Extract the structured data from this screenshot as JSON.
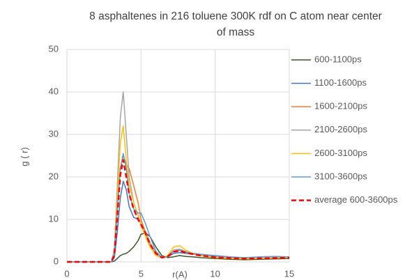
{
  "chart_data": {
    "type": "line",
    "title": "8 asphaltenes in 216 toluene 300K rdf on C atom near center of mass",
    "x_label": "r(A)",
    "y_label": "g ( r)",
    "x": [
      0,
      1,
      2,
      3,
      3.2,
      3.4,
      3.6,
      3.8,
      4,
      4.2,
      4.5,
      4.8,
      5,
      5.3,
      5.6,
      6,
      6.4,
      6.8,
      7.2,
      7.6,
      8,
      8.5,
      9,
      10,
      11,
      12,
      13,
      14,
      15
    ],
    "series": [
      {
        "name": "600-1100ps",
        "color": "#375623",
        "values": [
          0,
          0,
          0,
          0,
          0.2,
          0.8,
          1.5,
          1.8,
          2,
          2.5,
          3.5,
          5,
          6.5,
          6.8,
          6,
          3.5,
          1.5,
          1,
          1.2,
          1.5,
          1.3,
          1.2,
          1,
          0.8,
          0.6,
          0.5,
          0.6,
          0.7,
          0.8
        ]
      },
      {
        "name": "1100-1600ps",
        "color": "#4472c4",
        "values": [
          0,
          0,
          0,
          0,
          1,
          7,
          15,
          19,
          17,
          13,
          10.5,
          10,
          9,
          7,
          4.5,
          2,
          1,
          1.2,
          2,
          2.2,
          2,
          1.8,
          1.6,
          1.2,
          1,
          0.8,
          0.9,
          1,
          1
        ]
      },
      {
        "name": "1600-2100ps",
        "color": "#ed7d31",
        "values": [
          0,
          0,
          0,
          0,
          2,
          12,
          22,
          25,
          23,
          22,
          18,
          14,
          10,
          7,
          4.5,
          2,
          1,
          1.2,
          2.5,
          2.8,
          2.3,
          1.8,
          1.5,
          1,
          0.8,
          0.7,
          0.8,
          0.9,
          1
        ]
      },
      {
        "name": "2100-2600ps",
        "color": "#a5a5a5",
        "values": [
          0,
          0,
          0,
          0,
          3,
          18,
          34,
          40,
          30,
          20,
          14,
          11,
          9,
          6.5,
          4,
          2,
          1,
          1.3,
          2.8,
          3,
          2.5,
          2,
          1.8,
          1.3,
          1,
          0.8,
          0.9,
          1,
          1
        ]
      },
      {
        "name": "2600-3100ps",
        "color": "#ffc000",
        "values": [
          0,
          0,
          0,
          0,
          2.5,
          15,
          28,
          32,
          24,
          18,
          14,
          11,
          8.5,
          6,
          3.5,
          1.5,
          1,
          1.5,
          3.5,
          3.8,
          2.8,
          2,
          1.5,
          1,
          0.8,
          0.7,
          0.8,
          0.9,
          1
        ]
      },
      {
        "name": "3100-3600ps",
        "color": "#5b9bd5",
        "values": [
          0,
          0,
          0,
          0,
          2,
          12,
          22,
          25.5,
          22,
          16,
          12.5,
          11.5,
          11.5,
          9,
          6,
          2.5,
          1,
          1.3,
          2.5,
          2.7,
          2.3,
          2,
          1.8,
          1.5,
          1.2,
          1,
          1.2,
          1.3,
          1.2
        ]
      },
      {
        "name": "average 600-3600ps",
        "color": "#ff0000",
        "dashed": true,
        "values": [
          0,
          0,
          0,
          0,
          1.8,
          11,
          20.5,
          24,
          20,
          16,
          12.5,
          10,
          8.8,
          6.8,
          4.2,
          2,
          1,
          1.3,
          2.4,
          2.6,
          2.2,
          1.8,
          1.5,
          1.1,
          0.9,
          0.75,
          0.85,
          0.9,
          1
        ]
      }
    ],
    "xlim": [
      0,
      15
    ],
    "xticks": [
      0,
      5,
      10,
      15
    ],
    "ylim": [
      0,
      50
    ],
    "yticks": [
      0,
      10,
      20,
      30,
      40,
      50
    ],
    "grid": true,
    "legend": "right"
  }
}
